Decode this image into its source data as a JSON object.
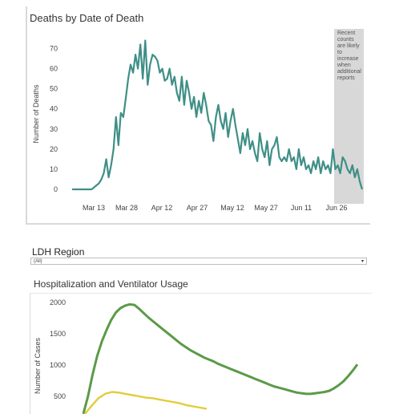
{
  "chart_data": [
    {
      "type": "line",
      "title": "Deaths by Date of Death",
      "xlabel": "",
      "ylabel": "Number of Deaths",
      "x_ticks": [
        "Mar 13",
        "Mar 28",
        "Apr 12",
        "Apr 27",
        "May 12",
        "May 27",
        "Jun 11",
        "Jun 26"
      ],
      "ylim": [
        0,
        75
      ],
      "y_ticks": [
        0,
        10,
        20,
        30,
        40,
        50,
        60,
        70
      ],
      "series_color": "#3f8f87",
      "series": [
        {
          "values": [
            0,
            0,
            0,
            0,
            0,
            0,
            0,
            0,
            0,
            1,
            2,
            3,
            5,
            8,
            15,
            6,
            12,
            20,
            36,
            22,
            38,
            36,
            45,
            55,
            62,
            58,
            67,
            60,
            72,
            55,
            74,
            52,
            62,
            67,
            66,
            64,
            58,
            60,
            54,
            55,
            60,
            52,
            56,
            48,
            44,
            56,
            42,
            54,
            48,
            40,
            46,
            36,
            44,
            38,
            48,
            42,
            34,
            32,
            24,
            36,
            42,
            34,
            30,
            38,
            26,
            34,
            40,
            32,
            25,
            18,
            28,
            22,
            30,
            20,
            24,
            18,
            14,
            28,
            20,
            16,
            24,
            12,
            20,
            22,
            26,
            16,
            14,
            16,
            14,
            20,
            14,
            16,
            10,
            20,
            12,
            16,
            10,
            12,
            8,
            14,
            10,
            16,
            8,
            14,
            10,
            12,
            8,
            20,
            10,
            12,
            8,
            16,
            14,
            10,
            8,
            12,
            6,
            10,
            4,
            0
          ]
        }
      ],
      "annotation": {
        "lines": [
          "Recent",
          "counts",
          "are likely",
          "to",
          "increase",
          "when",
          "additional",
          "reports"
        ],
        "shade_color": "#d8d8d8"
      }
    },
    {
      "type": "line",
      "title": "Hospitalization and Ventilator Usage",
      "xlabel": "",
      "ylabel": "Number of Cases",
      "y_ticks": [
        500,
        1000,
        1500,
        2000
      ],
      "series": [
        {
          "color": "#5b9a48",
          "values": [
            220,
            500,
            850,
            1150,
            1380,
            1560,
            1720,
            1840,
            1910,
            1950,
            1970,
            1960,
            1900,
            1830,
            1760,
            1700,
            1640,
            1580,
            1520,
            1460,
            1400,
            1340,
            1290,
            1240,
            1200,
            1160,
            1120,
            1090,
            1060,
            1020,
            990,
            960,
            930,
            900,
            870,
            840,
            810,
            780,
            750,
            720,
            690,
            660,
            640,
            620,
            600,
            580,
            560,
            550,
            540,
            540,
            550,
            560,
            570,
            590,
            630,
            680,
            740,
            820,
            910,
            1010
          ]
        },
        {
          "color": "#e2cc3b",
          "values": [
            220,
            350,
            470,
            540,
            570,
            560,
            540,
            520,
            500,
            480,
            470,
            450,
            430,
            410,
            390,
            360,
            340,
            320,
            300
          ]
        }
      ]
    }
  ],
  "filter": {
    "label": "LDH Region",
    "value": "(All)",
    "arrow": "▾"
  }
}
